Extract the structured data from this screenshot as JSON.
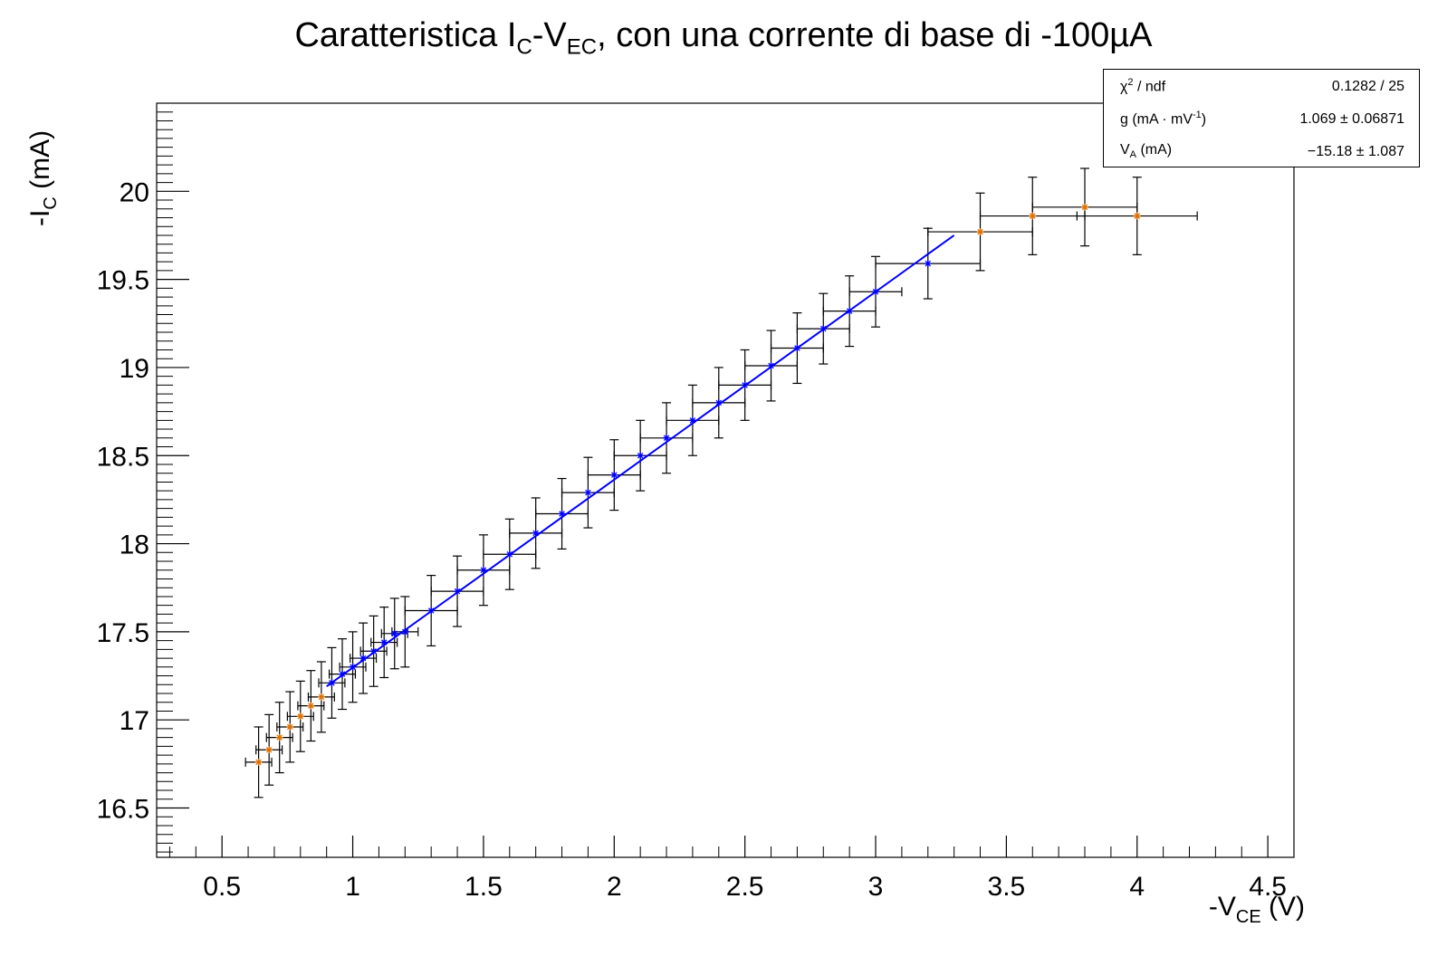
{
  "title": {
    "prefix": "Caratteristica I",
    "sub1": "C",
    "mid": "-V",
    "sub2": "EC",
    "suffix": ", con una corrente di base di -100µA"
  },
  "ylabel": {
    "prefix": "-I",
    "sub": "C",
    "suffix": " (mA)"
  },
  "xlabel": {
    "prefix": "-V",
    "sub": "CE",
    "suffix": " (V)"
  },
  "stats": {
    "row1": {
      "label_a": "χ",
      "label_sup": "2",
      "label_b": " / ndf",
      "value": "0.1282 / 25"
    },
    "row2": {
      "label_a": "g (mA   · mV",
      "label_sup": "-1",
      "label_b": ")",
      "value": "1.069   ± 0.06871"
    },
    "row3": {
      "label_a": "V",
      "label_sub": "A",
      "label_b": " (mA)",
      "value": "−15.18   ± 1.087"
    }
  },
  "colors": {
    "fit": "#0000ff",
    "fitted_point": "#0000ff",
    "excluded_point": "#e07000",
    "error_bar": "#000000"
  },
  "chart_data": {
    "type": "scatter",
    "xlim": [
      0.25,
      4.6
    ],
    "ylim": [
      16.22,
      20.5
    ],
    "xticks": [
      0.5,
      1,
      1.5,
      2,
      2.5,
      3,
      3.5,
      4,
      4.5
    ],
    "yticks": [
      16.5,
      17,
      17.5,
      18,
      18.5,
      19,
      19.5,
      20
    ],
    "xtick_labels": [
      "0.5",
      "1",
      "1.5",
      "2",
      "2.5",
      "3",
      "3.5",
      "4",
      "4.5"
    ],
    "ytick_labels": [
      "16.5",
      "17",
      "17.5",
      "18",
      "18.5",
      "19",
      "19.5",
      "20"
    ],
    "points": [
      {
        "x": 0.64,
        "y": 16.76,
        "ex": 0.05,
        "ey": 0.2,
        "fit": false
      },
      {
        "x": 0.68,
        "y": 16.83,
        "ex": 0.05,
        "ey": 0.2,
        "fit": false
      },
      {
        "x": 0.72,
        "y": 16.9,
        "ex": 0.05,
        "ey": 0.2,
        "fit": false
      },
      {
        "x": 0.76,
        "y": 16.96,
        "ex": 0.05,
        "ey": 0.2,
        "fit": false
      },
      {
        "x": 0.8,
        "y": 17.02,
        "ex": 0.05,
        "ey": 0.2,
        "fit": false
      },
      {
        "x": 0.84,
        "y": 17.08,
        "ex": 0.05,
        "ey": 0.2,
        "fit": false
      },
      {
        "x": 0.88,
        "y": 17.13,
        "ex": 0.05,
        "ey": 0.2,
        "fit": false
      },
      {
        "x": 0.92,
        "y": 17.21,
        "ex": 0.05,
        "ey": 0.2,
        "fit": true
      },
      {
        "x": 0.96,
        "y": 17.26,
        "ex": 0.05,
        "ey": 0.2,
        "fit": true
      },
      {
        "x": 1.0,
        "y": 17.3,
        "ex": 0.05,
        "ey": 0.2,
        "fit": true
      },
      {
        "x": 1.04,
        "y": 17.35,
        "ex": 0.05,
        "ey": 0.2,
        "fit": true
      },
      {
        "x": 1.08,
        "y": 17.39,
        "ex": 0.05,
        "ey": 0.2,
        "fit": true
      },
      {
        "x": 1.12,
        "y": 17.44,
        "ex": 0.05,
        "ey": 0.2,
        "fit": true
      },
      {
        "x": 1.16,
        "y": 17.49,
        "ex": 0.05,
        "ey": 0.2,
        "fit": true
      },
      {
        "x": 1.2,
        "y": 17.5,
        "ex": 0.05,
        "ey": 0.2,
        "fit": true
      },
      {
        "x": 1.3,
        "y": 17.62,
        "ex": 0.1,
        "ey": 0.2,
        "fit": true
      },
      {
        "x": 1.4,
        "y": 17.73,
        "ex": 0.1,
        "ey": 0.2,
        "fit": true
      },
      {
        "x": 1.5,
        "y": 17.85,
        "ex": 0.1,
        "ey": 0.2,
        "fit": true
      },
      {
        "x": 1.6,
        "y": 17.94,
        "ex": 0.1,
        "ey": 0.2,
        "fit": true
      },
      {
        "x": 1.7,
        "y": 18.06,
        "ex": 0.1,
        "ey": 0.2,
        "fit": true
      },
      {
        "x": 1.8,
        "y": 18.17,
        "ex": 0.1,
        "ey": 0.2,
        "fit": true
      },
      {
        "x": 1.9,
        "y": 18.29,
        "ex": 0.1,
        "ey": 0.2,
        "fit": true
      },
      {
        "x": 2.0,
        "y": 18.39,
        "ex": 0.1,
        "ey": 0.2,
        "fit": true
      },
      {
        "x": 2.1,
        "y": 18.5,
        "ex": 0.1,
        "ey": 0.2,
        "fit": true
      },
      {
        "x": 2.2,
        "y": 18.6,
        "ex": 0.1,
        "ey": 0.2,
        "fit": true
      },
      {
        "x": 2.3,
        "y": 18.7,
        "ex": 0.1,
        "ey": 0.2,
        "fit": true
      },
      {
        "x": 2.4,
        "y": 18.8,
        "ex": 0.1,
        "ey": 0.2,
        "fit": true
      },
      {
        "x": 2.5,
        "y": 18.9,
        "ex": 0.1,
        "ey": 0.2,
        "fit": true
      },
      {
        "x": 2.6,
        "y": 19.01,
        "ex": 0.1,
        "ey": 0.2,
        "fit": true
      },
      {
        "x": 2.7,
        "y": 19.11,
        "ex": 0.1,
        "ey": 0.2,
        "fit": true
      },
      {
        "x": 2.8,
        "y": 19.22,
        "ex": 0.1,
        "ey": 0.2,
        "fit": true
      },
      {
        "x": 2.9,
        "y": 19.32,
        "ex": 0.1,
        "ey": 0.2,
        "fit": true
      },
      {
        "x": 3.0,
        "y": 19.43,
        "ex": 0.1,
        "ey": 0.2,
        "fit": true
      },
      {
        "x": 3.2,
        "y": 19.59,
        "ex": 0.2,
        "ey": 0.2,
        "fit": true
      },
      {
        "x": 3.4,
        "y": 19.77,
        "ex": 0.2,
        "ey": 0.22,
        "fit": false
      },
      {
        "x": 3.6,
        "y": 19.86,
        "ex": 0.2,
        "ey": 0.22,
        "fit": false
      },
      {
        "x": 3.8,
        "y": 19.91,
        "ex": 0.2,
        "ey": 0.22,
        "fit": false
      },
      {
        "x": 4.0,
        "y": 19.86,
        "ex": 0.23,
        "ey": 0.22,
        "fit": false
      }
    ],
    "fit_line": {
      "x": [
        0.9,
        3.3
      ],
      "y": [
        17.19,
        19.75
      ]
    },
    "grid": false,
    "legend": "top-right"
  }
}
